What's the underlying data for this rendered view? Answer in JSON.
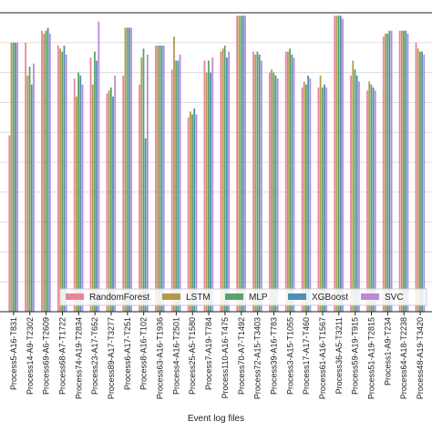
{
  "chart_data": {
    "type": "bar",
    "xlabel": "Event log files",
    "ylabel": "",
    "ylim": [
      0,
      1
    ],
    "grid": "horizontal",
    "legend_placement": "bottom-right",
    "categories": [
      "Process5-A16-T831",
      "Process14-A9-T2302",
      "Process69-A6-T2609",
      "Process68-A7-T1722",
      "Process74-A19-T2834",
      "Process23-A17-T652",
      "Process89-A17-T3277",
      "Process6-A17-T251",
      "Process8-A16-T102",
      "Process63-A16-T1936",
      "Process4-A16-T2501",
      "Process25-A5-T1580",
      "Process7-A19-T784",
      "Process110-A16-T475",
      "Process70-A7-T1492",
      "Process72-A15-T3403",
      "Process39-A16-T783",
      "Process3-A15-T1055",
      "Process17-A17-T460",
      "Process61-A16-T1567",
      "Process36-A5-T3211",
      "Process59-A19-T915",
      "Process51-A19-T2815",
      "Process1-A9-T234",
      "Process64-A18-T2238",
      "Process48-A19-T3420"
    ],
    "series": [
      {
        "name": "RandomForest",
        "color": "#e8849a",
        "values": [
          0.59,
          0.9,
          0.94,
          0.89,
          0.78,
          0.85,
          0.73,
          0.79,
          0.76,
          0.89,
          0.81,
          0.65,
          0.84,
          0.87,
          0.99,
          0.87,
          0.8,
          0.87,
          0.75,
          0.75,
          0.99,
          0.79,
          0.74,
          0.92,
          0.94,
          0.9
        ]
      },
      {
        "name": "LSTM",
        "color": "#b39a4a",
        "values": [
          0.9,
          0.79,
          0.93,
          0.88,
          0.72,
          0.76,
          0.74,
          0.95,
          0.85,
          0.89,
          0.92,
          0.67,
          0.8,
          0.88,
          0.99,
          0.86,
          0.81,
          0.87,
          0.77,
          0.79,
          0.99,
          0.84,
          0.77,
          0.93,
          0.94,
          0.88
        ]
      },
      {
        "name": "MLP",
        "color": "#5aa36a",
        "values": [
          0.9,
          0.82,
          0.94,
          0.87,
          0.8,
          0.87,
          0.75,
          0.95,
          0.88,
          0.89,
          0.84,
          0.66,
          0.84,
          0.89,
          0.99,
          0.87,
          0.8,
          0.88,
          0.76,
          0.75,
          0.99,
          0.81,
          0.76,
          0.93,
          0.94,
          0.87
        ]
      },
      {
        "name": "XGBoost",
        "color": "#4f8fb0",
        "values": [
          0.9,
          0.76,
          0.95,
          0.89,
          0.79,
          0.84,
          0.72,
          0.95,
          0.58,
          0.89,
          0.84,
          0.68,
          0.8,
          0.85,
          0.99,
          0.86,
          0.79,
          0.86,
          0.79,
          0.76,
          0.99,
          0.79,
          0.75,
          0.94,
          0.94,
          0.87
        ]
      },
      {
        "name": "SVC",
        "color": "#b98ad6",
        "values": [
          0.9,
          0.83,
          0.93,
          0.86,
          0.76,
          0.97,
          0.79,
          0.95,
          0.86,
          0.89,
          0.86,
          0.66,
          0.85,
          0.87,
          0.99,
          0.84,
          0.78,
          0.85,
          0.78,
          0.75,
          0.98,
          0.77,
          0.74,
          0.94,
          0.93,
          0.86
        ]
      }
    ]
  }
}
